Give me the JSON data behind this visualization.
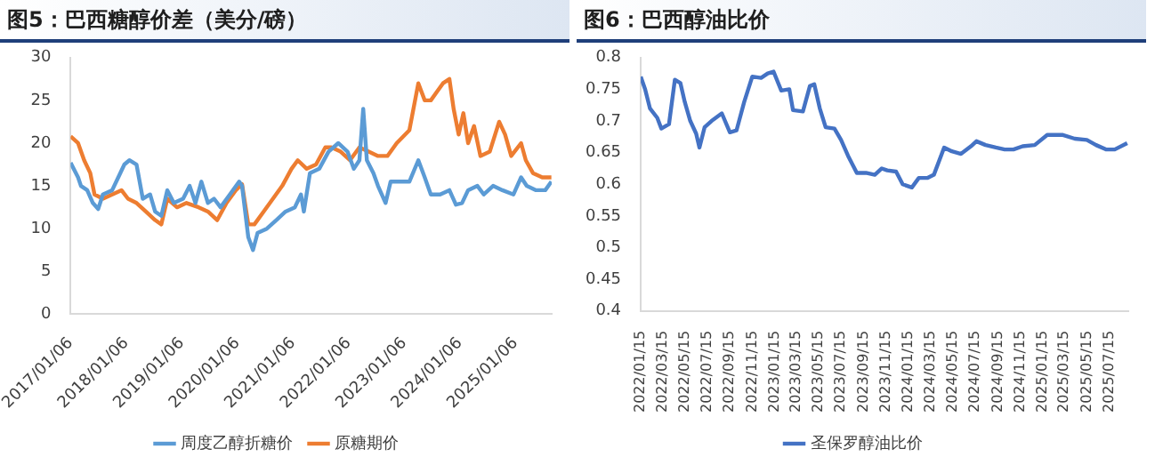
{
  "chart_data": [
    {
      "type": "line",
      "title": "图5：巴西糖醇价差（美分/磅）",
      "legend": "bottom",
      "marker": "none",
      "line_style": "solid",
      "xlim": [
        "2017-01-06",
        "2025-09-01"
      ],
      "ylim": [
        0,
        30
      ],
      "yticks": [
        0,
        5,
        10,
        15,
        20,
        25,
        30
      ],
      "xticks": [
        {
          "value": "2017-01-06",
          "label": "2017/01/06"
        },
        {
          "value": "2018-01-06",
          "label": "2018/01/06"
        },
        {
          "value": "2019-01-06",
          "label": "2019/01/06"
        },
        {
          "value": "2020-01-06",
          "label": "2020/01/06"
        },
        {
          "value": "2021-01-06",
          "label": "2021/01/06"
        },
        {
          "value": "2022-01-06",
          "label": "2022/01/06"
        },
        {
          "value": "2023-01-06",
          "label": "2023/01/06"
        },
        {
          "value": "2024-01-06",
          "label": "2024/01/06"
        },
        {
          "value": "2025-01-06",
          "label": "2025/01/06"
        }
      ],
      "series": [
        {
          "name": "周度乙醇折糖价",
          "color": "#5b9bd5",
          "x": [
            "2017-01-06",
            "2017-02-24",
            "2017-03-15",
            "2017-04-25",
            "2017-06-01",
            "2017-07-06",
            "2017-08-06",
            "2017-10-06",
            "2017-11-15",
            "2017-12-25",
            "2018-01-27",
            "2018-03-15",
            "2018-04-25",
            "2018-06-12",
            "2018-07-15",
            "2018-08-25",
            "2018-10-03",
            "2018-11-15",
            "2019-01-15",
            "2019-02-27",
            "2019-04-06",
            "2019-05-15",
            "2019-06-27",
            "2019-08-06",
            "2019-09-18",
            "2019-11-18",
            "2020-01-18",
            "2020-02-06",
            "2020-03-18",
            "2020-04-18",
            "2020-05-18",
            "2020-07-18",
            "2020-09-18",
            "2020-11-18",
            "2021-01-18",
            "2021-02-27",
            "2021-03-18",
            "2021-04-27",
            "2021-06-27",
            "2021-08-27",
            "2021-10-30",
            "2021-12-30",
            "2022-02-09",
            "2022-03-18",
            "2022-04-12",
            "2022-05-06",
            "2022-06-18",
            "2022-07-18",
            "2022-09-06",
            "2022-10-09",
            "2022-12-09",
            "2023-02-09",
            "2023-04-09",
            "2023-05-21",
            "2023-06-30",
            "2023-08-30",
            "2023-10-30",
            "2023-12-12",
            "2024-01-21",
            "2024-03-01",
            "2024-05-01",
            "2024-06-12",
            "2024-08-12",
            "2024-10-12",
            "2024-12-24",
            "2025-02-12",
            "2025-03-21",
            "2025-05-21",
            "2025-07-21",
            "2025-08-30"
          ],
          "values": [
            17.7,
            16,
            15,
            14.5,
            13,
            12.3,
            14,
            14.5,
            16,
            17.5,
            18,
            17.5,
            13.5,
            14,
            12,
            11.5,
            14.5,
            13,
            13.5,
            15,
            13,
            15.5,
            13,
            13.5,
            12.5,
            14,
            15.5,
            15,
            9,
            7.5,
            9.5,
            10,
            11,
            12,
            12.5,
            14,
            12,
            16.5,
            17,
            19,
            20,
            19,
            17,
            18,
            24,
            18,
            16.5,
            15,
            13,
            15.5,
            15.5,
            15.5,
            18,
            16,
            14,
            14,
            14.5,
            12.8,
            13,
            14.5,
            15,
            14,
            15,
            14.5,
            14,
            16,
            15,
            14.5,
            14.5,
            15.5
          ]
        },
        {
          "name": "原糖期价",
          "color": "#ed7d31",
          "x": [
            "2017-01-06",
            "2017-02-24",
            "2017-04-05",
            "2017-05-15",
            "2017-06-12",
            "2017-08-06",
            "2017-10-06",
            "2017-12-06",
            "2018-01-18",
            "2018-03-15",
            "2018-05-15",
            "2018-07-15",
            "2018-08-25",
            "2018-10-03",
            "2018-12-06",
            "2019-02-06",
            "2019-04-27",
            "2019-06-27",
            "2019-08-27",
            "2019-10-27",
            "2019-12-27",
            "2020-02-06",
            "2020-03-18",
            "2020-04-27",
            "2020-06-27",
            "2020-08-27",
            "2020-10-27",
            "2020-12-27",
            "2021-02-06",
            "2021-04-06",
            "2021-06-06",
            "2021-08-06",
            "2021-09-15",
            "2021-11-15",
            "2022-01-15",
            "2022-03-18",
            "2022-05-18",
            "2022-07-18",
            "2022-09-18",
            "2022-11-18",
            "2023-02-09",
            "2023-04-09",
            "2023-05-21",
            "2023-06-30",
            "2023-08-09",
            "2023-09-18",
            "2023-10-30",
            "2023-11-27",
            "2023-12-30",
            "2024-01-30",
            "2024-03-01",
            "2024-04-09",
            "2024-05-21",
            "2024-07-21",
            "2024-09-21",
            "2024-10-30",
            "2024-12-09",
            "2025-02-12",
            "2025-03-15",
            "2025-05-01",
            "2025-07-01",
            "2025-08-30"
          ],
          "values": [
            20.8,
            20,
            18,
            16.5,
            14,
            13.5,
            14,
            14.5,
            13.5,
            13,
            12,
            11,
            10.5,
            13.5,
            12.5,
            13,
            12.5,
            12,
            11,
            13,
            14.5,
            15.2,
            10.5,
            10.5,
            12,
            13.5,
            15,
            17,
            18,
            17,
            17.5,
            19.5,
            19.5,
            19,
            18,
            19.5,
            19,
            18.5,
            18.5,
            20,
            21.5,
            27,
            25,
            25,
            26,
            27,
            27.5,
            24,
            21,
            23.5,
            20,
            22,
            18.5,
            19,
            22.5,
            21,
            18.5,
            20,
            18,
            16.5,
            16,
            16
          ]
        }
      ]
    },
    {
      "type": "line",
      "title": "图6：巴西醇油比价",
      "legend": "bottom",
      "marker": "none",
      "line_style": "solid",
      "xlim": [
        "2022-01-15",
        "2025-09-05"
      ],
      "ylim": [
        0.4,
        0.8
      ],
      "yticks": [
        0.4,
        0.45,
        0.5,
        0.55,
        0.6,
        0.65,
        0.7,
        0.75,
        0.8
      ],
      "xticks": [
        {
          "value": "2022-01-15",
          "label": "2022/01/15"
        },
        {
          "value": "2022-03-15",
          "label": "2022/03/15"
        },
        {
          "value": "2022-05-15",
          "label": "2022/05/15"
        },
        {
          "value": "2022-07-15",
          "label": "2022/07/15"
        },
        {
          "value": "2022-09-15",
          "label": "2022/09/15"
        },
        {
          "value": "2022-11-15",
          "label": "2022/11/15"
        },
        {
          "value": "2023-01-15",
          "label": "2023/01/15"
        },
        {
          "value": "2023-03-15",
          "label": "2023/03/15"
        },
        {
          "value": "2023-05-15",
          "label": "2023/05/15"
        },
        {
          "value": "2023-07-15",
          "label": "2023/07/15"
        },
        {
          "value": "2023-09-15",
          "label": "2023/09/15"
        },
        {
          "value": "2023-11-15",
          "label": "2023/11/15"
        },
        {
          "value": "2024-01-15",
          "label": "2024/01/15"
        },
        {
          "value": "2024-03-15",
          "label": "2024/03/15"
        },
        {
          "value": "2024-05-15",
          "label": "2024/05/15"
        },
        {
          "value": "2024-07-15",
          "label": "2024/07/15"
        },
        {
          "value": "2024-09-15",
          "label": "2024/09/15"
        },
        {
          "value": "2024-11-15",
          "label": "2024/11/15"
        },
        {
          "value": "2025-01-15",
          "label": "2025/01/15"
        },
        {
          "value": "2025-03-15",
          "label": "2025/03/15"
        },
        {
          "value": "2025-05-15",
          "label": "2025/05/15"
        },
        {
          "value": "2025-07-15",
          "label": "2025/07/15"
        }
      ],
      "series": [
        {
          "name": "圣保罗醇油比价",
          "color": "#4472c4",
          "x": [
            "2022-01-15",
            "2022-01-27",
            "2022-02-09",
            "2022-03-01",
            "2022-03-12",
            "2022-04-02",
            "2022-04-18",
            "2022-05-03",
            "2022-05-15",
            "2022-05-30",
            "2022-06-15",
            "2022-06-24",
            "2022-07-08",
            "2022-07-27",
            "2022-08-24",
            "2022-09-15",
            "2022-10-03",
            "2022-10-24",
            "2022-11-15",
            "2022-12-09",
            "2022-12-27",
            "2023-01-12",
            "2023-02-02",
            "2023-02-24",
            "2023-03-06",
            "2023-04-02",
            "2023-04-21",
            "2023-05-03",
            "2023-05-18",
            "2023-06-03",
            "2023-06-27",
            "2023-07-15",
            "2023-08-03",
            "2023-08-27",
            "2023-09-21",
            "2023-10-15",
            "2023-11-03",
            "2023-11-18",
            "2023-12-12",
            "2023-12-30",
            "2024-01-24",
            "2024-02-12",
            "2024-03-06",
            "2024-03-24",
            "2024-04-21",
            "2024-05-12",
            "2024-06-06",
            "2024-07-03",
            "2024-07-18",
            "2024-08-12",
            "2024-09-09",
            "2024-10-03",
            "2024-10-27",
            "2024-11-21",
            "2024-12-24",
            "2025-01-27",
            "2025-03-09",
            "2025-04-12",
            "2025-05-15",
            "2025-06-09",
            "2025-07-06",
            "2025-07-30",
            "2025-09-02"
          ],
          "values": [
            0.77,
            0.75,
            0.72,
            0.705,
            0.688,
            0.695,
            0.765,
            0.76,
            0.73,
            0.7,
            0.68,
            0.658,
            0.69,
            0.7,
            0.712,
            0.682,
            0.685,
            0.73,
            0.77,
            0.768,
            0.775,
            0.778,
            0.748,
            0.75,
            0.717,
            0.715,
            0.755,
            0.758,
            0.72,
            0.69,
            0.688,
            0.67,
            0.645,
            0.618,
            0.618,
            0.615,
            0.625,
            0.622,
            0.62,
            0.6,
            0.595,
            0.61,
            0.61,
            0.615,
            0.658,
            0.652,
            0.648,
            0.66,
            0.668,
            0.662,
            0.658,
            0.655,
            0.655,
            0.66,
            0.662,
            0.678,
            0.678,
            0.672,
            0.67,
            0.662,
            0.655,
            0.655,
            0.665
          ]
        }
      ]
    }
  ]
}
